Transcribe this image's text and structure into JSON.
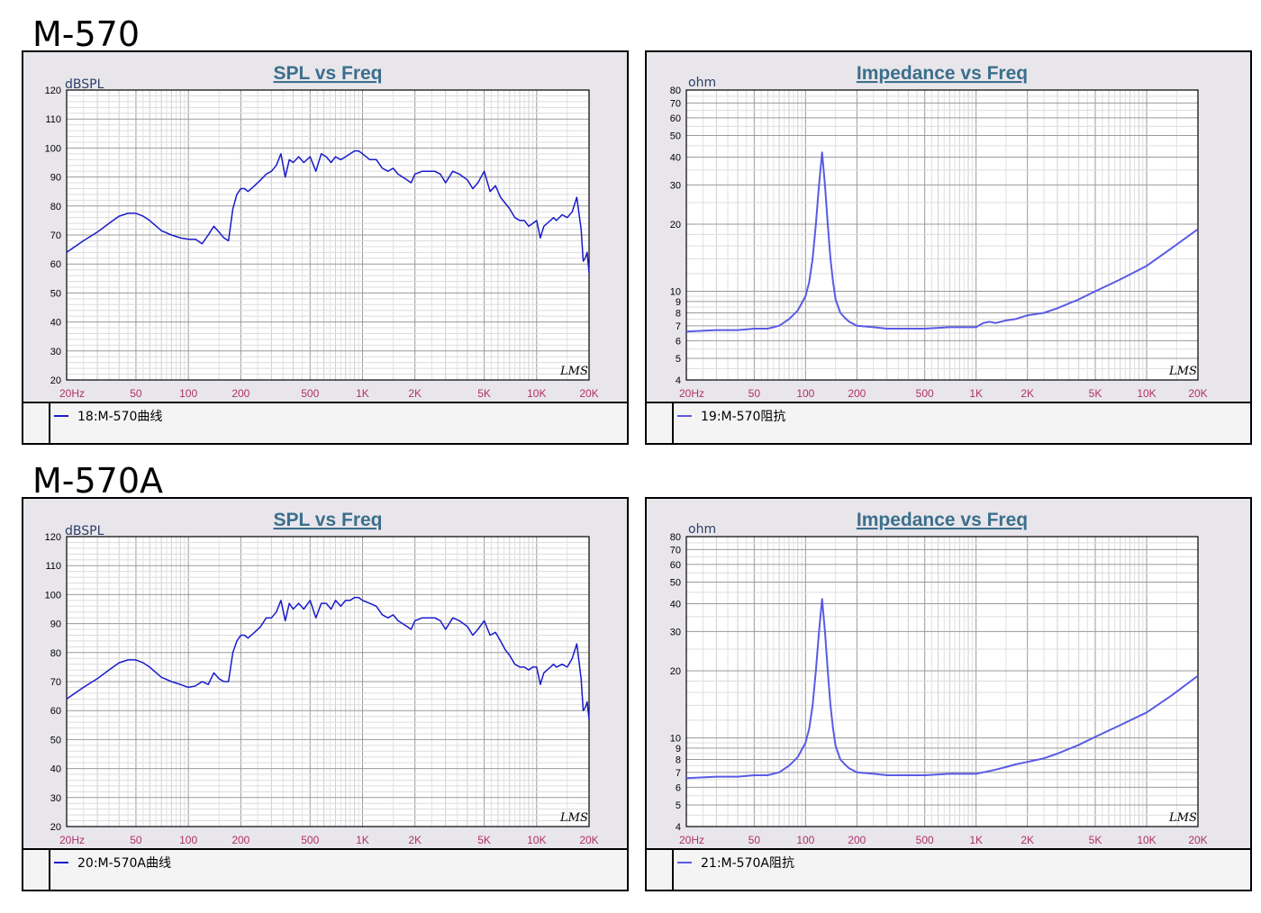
{
  "models": [
    {
      "name": "M-570"
    },
    {
      "name": "M-570A"
    }
  ],
  "chart_data": [
    {
      "type": "line",
      "title": "SPL vs Freq",
      "ylabel": "dBSPL",
      "xscale": "log",
      "xlim": [
        20,
        20000
      ],
      "ylim": [
        20,
        120
      ],
      "xticks": [
        20,
        50,
        100,
        200,
        500,
        1000,
        2000,
        5000,
        10000,
        20000
      ],
      "xtick_labels": [
        "20Hz",
        "50",
        "100",
        "200",
        "500",
        "1K",
        "2K",
        "5K",
        "10K",
        "20K"
      ],
      "yticks": [
        20,
        30,
        40,
        50,
        60,
        70,
        80,
        90,
        100,
        110,
        120
      ],
      "ytick_labels": [
        "20",
        "30",
        "40",
        "50",
        "60",
        "70",
        "80",
        "90",
        "100",
        "110",
        "120"
      ],
      "grid": true,
      "watermark": "LMS",
      "legend_position": "bottom",
      "series": [
        {
          "name": "18:M-570曲线",
          "color": "#1a1acc",
          "x": [
            20,
            25,
            30,
            35,
            40,
            45,
            50,
            55,
            60,
            70,
            80,
            90,
            100,
            110,
            120,
            130,
            140,
            150,
            160,
            170,
            180,
            190,
            200,
            210,
            220,
            240,
            260,
            280,
            300,
            320,
            340,
            360,
            380,
            400,
            430,
            460,
            500,
            540,
            580,
            620,
            660,
            700,
            750,
            800,
            850,
            900,
            950,
            1000,
            1100,
            1200,
            1300,
            1400,
            1500,
            1600,
            1700,
            1800,
            1900,
            2000,
            2200,
            2400,
            2600,
            2800,
            3000,
            3300,
            3600,
            4000,
            4300,
            4600,
            5000,
            5400,
            5800,
            6200,
            6600,
            7000,
            7500,
            8000,
            8500,
            9000,
            9500,
            10000,
            10500,
            11000,
            11500,
            12000,
            12500,
            13000,
            14000,
            15000,
            16000,
            17000,
            18000,
            18500,
            19000,
            19500,
            20000
          ],
          "y": [
            64,
            68,
            71,
            74,
            76.5,
            77.5,
            77.5,
            76.5,
            75,
            71.5,
            70,
            69,
            68.5,
            68.5,
            67,
            70,
            73,
            71,
            69,
            68,
            79,
            84,
            86,
            86,
            85,
            87,
            89,
            91,
            92,
            94,
            98,
            90,
            96,
            95,
            97,
            95,
            97,
            92,
            98,
            97,
            95,
            97,
            96,
            97,
            98,
            99,
            99,
            98,
            96,
            96,
            93,
            92,
            93,
            91,
            90,
            89,
            88,
            91,
            92,
            92,
            92,
            91,
            88,
            92,
            91,
            89,
            86,
            88,
            92,
            85,
            87,
            83,
            81,
            79,
            76,
            75,
            75,
            73,
            74,
            75,
            69,
            73,
            74,
            75,
            76,
            75,
            77,
            76,
            78,
            83,
            72,
            61,
            62,
            64,
            57
          ]
        }
      ]
    },
    {
      "type": "line",
      "title": "Impedance vs Freq",
      "ylabel": "ohm",
      "xscale": "log",
      "yscale": "log",
      "xlim": [
        20,
        20000
      ],
      "ylim": [
        4,
        80
      ],
      "xticks": [
        20,
        50,
        100,
        200,
        500,
        1000,
        2000,
        5000,
        10000,
        20000
      ],
      "xtick_labels": [
        "20Hz",
        "50",
        "100",
        "200",
        "500",
        "1K",
        "2K",
        "5K",
        "10K",
        "20K"
      ],
      "yticks": [
        4,
        5,
        6,
        7,
        8,
        9,
        10,
        20,
        30,
        40,
        50,
        60,
        70,
        80
      ],
      "ytick_labels": [
        "4",
        "5",
        "6",
        "7",
        "8",
        "9",
        "10",
        "20",
        "30",
        "40",
        "50",
        "60",
        "70",
        "80"
      ],
      "grid": true,
      "watermark": "LMS",
      "legend_position": "bottom",
      "series": [
        {
          "name": "19:M-570阻抗",
          "color": "#5a5ae6",
          "x": [
            20,
            30,
            40,
            50,
            60,
            70,
            80,
            90,
            100,
            105,
            110,
            115,
            120,
            125,
            130,
            135,
            140,
            145,
            150,
            160,
            170,
            180,
            200,
            250,
            300,
            400,
            500,
            700,
            1000,
            1100,
            1200,
            1300,
            1500,
            1700,
            2000,
            2500,
            3000,
            4000,
            5000,
            7000,
            10000,
            14000,
            20000
          ],
          "y": [
            6.6,
            6.7,
            6.7,
            6.8,
            6.8,
            7,
            7.5,
            8.2,
            9.5,
            11,
            14,
            20,
            30,
            42,
            30,
            20,
            14,
            11,
            9.2,
            8,
            7.6,
            7.3,
            7,
            6.9,
            6.8,
            6.8,
            6.8,
            6.9,
            6.9,
            7.2,
            7.3,
            7.2,
            7.4,
            7.5,
            7.8,
            8,
            8.4,
            9.2,
            10,
            11.3,
            13,
            15.6,
            19
          ]
        }
      ]
    },
    {
      "type": "line",
      "title": "SPL vs Freq",
      "ylabel": "dBSPL",
      "xscale": "log",
      "xlim": [
        20,
        20000
      ],
      "ylim": [
        20,
        120
      ],
      "xticks": [
        20,
        50,
        100,
        200,
        500,
        1000,
        2000,
        5000,
        10000,
        20000
      ],
      "xtick_labels": [
        "20Hz",
        "50",
        "100",
        "200",
        "500",
        "1K",
        "2K",
        "5K",
        "10K",
        "20K"
      ],
      "yticks": [
        20,
        30,
        40,
        50,
        60,
        70,
        80,
        90,
        100,
        110,
        120
      ],
      "ytick_labels": [
        "20",
        "30",
        "40",
        "50",
        "60",
        "70",
        "80",
        "90",
        "100",
        "110",
        "120"
      ],
      "grid": true,
      "watermark": "LMS",
      "legend_position": "bottom",
      "series": [
        {
          "name": "20:M-570A曲线",
          "color": "#1a1acc",
          "x": [
            20,
            25,
            30,
            35,
            40,
            45,
            50,
            55,
            60,
            70,
            80,
            90,
            100,
            110,
            120,
            130,
            140,
            150,
            160,
            170,
            180,
            190,
            200,
            210,
            220,
            240,
            260,
            280,
            300,
            320,
            340,
            360,
            380,
            400,
            430,
            460,
            500,
            540,
            580,
            620,
            660,
            700,
            750,
            800,
            850,
            900,
            950,
            1000,
            1100,
            1200,
            1300,
            1400,
            1500,
            1600,
            1700,
            1800,
            1900,
            2000,
            2200,
            2400,
            2600,
            2800,
            3000,
            3300,
            3600,
            4000,
            4300,
            4600,
            5000,
            5400,
            5800,
            6200,
            6600,
            7000,
            7500,
            8000,
            8500,
            9000,
            9500,
            10000,
            10500,
            11000,
            11500,
            12000,
            12500,
            13000,
            14000,
            15000,
            16000,
            17000,
            18000,
            18500,
            19000,
            19500,
            20000
          ],
          "y": [
            64,
            68,
            71,
            74,
            76.5,
            77.5,
            77.5,
            76.5,
            75,
            71.5,
            70,
            69,
            68,
            68.5,
            70,
            69,
            73,
            71,
            70,
            70,
            80,
            84,
            86,
            86,
            85,
            87,
            89,
            92,
            92,
            94,
            98,
            91,
            97,
            95,
            97,
            95,
            98,
            92,
            97,
            97,
            95,
            98,
            96,
            98,
            98,
            99,
            99,
            98,
            97,
            96,
            93,
            92,
            93,
            91,
            90,
            89,
            88,
            91,
            92,
            92,
            92,
            91,
            88,
            92,
            91,
            89,
            86,
            88,
            91,
            86,
            87,
            84,
            81,
            79,
            76,
            75,
            75,
            74,
            75,
            75,
            69,
            73,
            74,
            75,
            76,
            75,
            76,
            75,
            78,
            83,
            71,
            60,
            61,
            63,
            57
          ]
        }
      ]
    },
    {
      "type": "line",
      "title": "Impedance vs Freq",
      "ylabel": "ohm",
      "xscale": "log",
      "yscale": "log",
      "xlim": [
        20,
        20000
      ],
      "ylim": [
        4,
        80
      ],
      "xticks": [
        20,
        50,
        100,
        200,
        500,
        1000,
        2000,
        5000,
        10000,
        20000
      ],
      "xtick_labels": [
        "20Hz",
        "50",
        "100",
        "200",
        "500",
        "1K",
        "2K",
        "5K",
        "10K",
        "20K"
      ],
      "yticks": [
        4,
        5,
        6,
        7,
        8,
        9,
        10,
        20,
        30,
        40,
        50,
        60,
        70,
        80
      ],
      "ytick_labels": [
        "4",
        "5",
        "6",
        "7",
        "8",
        "9",
        "10",
        "20",
        "30",
        "40",
        "50",
        "60",
        "70",
        "80"
      ],
      "grid": true,
      "watermark": "LMS",
      "legend_position": "bottom",
      "series": [
        {
          "name": "21:M-570A阻抗",
          "color": "#5a5ae6",
          "x": [
            20,
            30,
            40,
            50,
            60,
            70,
            80,
            90,
            100,
            105,
            110,
            115,
            120,
            125,
            130,
            135,
            140,
            145,
            150,
            160,
            170,
            180,
            200,
            250,
            300,
            400,
            500,
            700,
            1000,
            1100,
            1200,
            1300,
            1500,
            1700,
            2000,
            2500,
            3000,
            4000,
            5000,
            7000,
            10000,
            14000,
            20000
          ],
          "y": [
            6.6,
            6.7,
            6.7,
            6.8,
            6.8,
            7,
            7.5,
            8.2,
            9.5,
            11,
            14,
            20,
            30,
            42,
            30,
            20,
            14,
            11,
            9.2,
            8,
            7.6,
            7.3,
            7,
            6.9,
            6.8,
            6.8,
            6.8,
            6.9,
            6.9,
            7,
            7.1,
            7.2,
            7.4,
            7.6,
            7.8,
            8.1,
            8.5,
            9.3,
            10.1,
            11.4,
            13,
            15.5,
            19
          ]
        }
      ]
    }
  ]
}
